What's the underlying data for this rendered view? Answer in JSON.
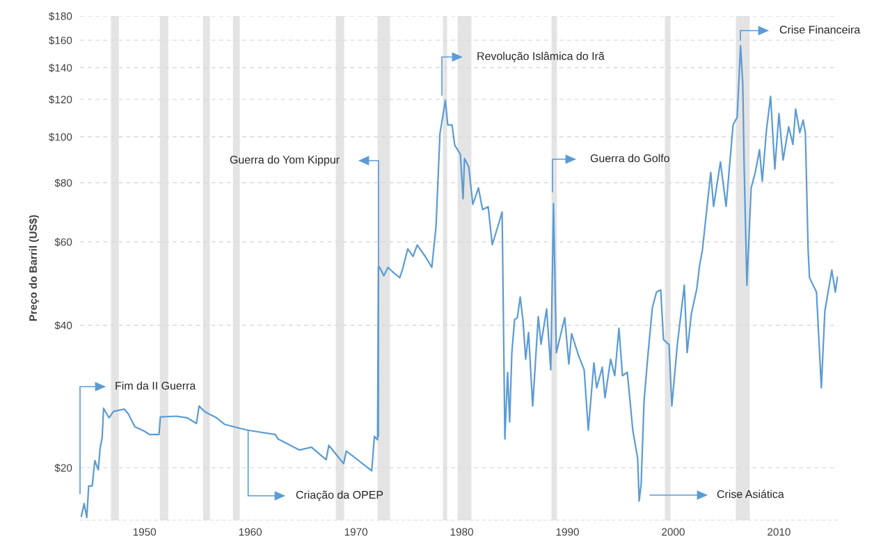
{
  "chart_data": {
    "type": "line",
    "ylabel": "Preço do Barril (US$)",
    "log": "y",
    "grid": "y",
    "line_style": "solid",
    "marker": "none",
    "xlim": [
      1943.9,
      2015.6
    ],
    "xticks": [
      1950,
      1960,
      1970,
      1980,
      1990,
      2000,
      2010
    ],
    "ylim": [
      15.5,
      180
    ],
    "yticks": [
      {
        "value": 20,
        "label": "$20"
      },
      {
        "value": 40,
        "label": "$40"
      },
      {
        "value": 60,
        "label": "$60"
      },
      {
        "value": 80,
        "label": "$80"
      },
      {
        "value": 100,
        "label": "$100"
      },
      {
        "value": 120,
        "label": "$120"
      },
      {
        "value": 140,
        "label": "$140"
      },
      {
        "value": 160,
        "label": "$160"
      },
      {
        "value": 180,
        "label": "$180"
      }
    ],
    "series": [
      {
        "color": "#5b9bd5",
        "x": [
          1944.03,
          1944.29,
          1944.54,
          1944.72,
          1945.05,
          1945.3,
          1945.63,
          1945.8,
          1945.99,
          1946.13,
          1946.64,
          1947.07,
          1948.08,
          1948.46,
          1949.09,
          1949.98,
          1950.49,
          1951.37,
          1951.5,
          1953.01,
          1954.03,
          1954.91,
          1955.16,
          1955.67,
          1956.05,
          1956.81,
          1957.57,
          1959.08,
          1959.8,
          1962.37,
          1962.63,
          1964.66,
          1965.79,
          1967.18,
          1967.43,
          1968.83,
          1969.08,
          1971.49,
          1971.74,
          1972.04,
          1972.12,
          1972.24,
          1972.63,
          1973.03,
          1973.49,
          1974.14,
          1974.41,
          1974.9,
          1975.39,
          1975.79,
          1976.55,
          1977.17,
          1977.57,
          1977.94,
          1978.45,
          1978.68,
          1979.08,
          1979.34,
          1979.87,
          1980.13,
          1980.26,
          1980.66,
          1981.05,
          1981.58,
          1981.97,
          1982.5,
          1982.89,
          1983.42,
          1983.82,
          1984.08,
          1984.34,
          1984.53,
          1984.74,
          1985.0,
          1985.26,
          1985.53,
          1985.79,
          1986.05,
          1986.32,
          1986.71,
          1987.24,
          1987.5,
          1988.03,
          1988.42,
          1988.68,
          1988.95,
          1989.74,
          1990.13,
          1990.39,
          1991.05,
          1991.58,
          1991.97,
          1992.5,
          1992.76,
          1993.29,
          1993.55,
          1994.08,
          1994.47,
          1994.87,
          1995.2,
          1995.66,
          1996.18,
          1996.64,
          1996.78,
          1996.97,
          1997.24,
          1997.63,
          1998.03,
          1998.42,
          1998.82,
          1999.08,
          1999.61,
          1999.87,
          2000.39,
          2001.05,
          2001.32,
          2001.71,
          2002.24,
          2002.5,
          2002.76,
          2003.55,
          2003.82,
          2004.47,
          2005.0,
          2005.66,
          2006.05,
          2006.37,
          2006.58,
          2006.71,
          2006.97,
          2007.37,
          2007.76,
          2008.16,
          2008.42,
          2008.82,
          2009.21,
          2009.61,
          2010.0,
          2010.39,
          2010.92,
          2011.32,
          2011.58,
          2011.97,
          2012.29,
          2012.5,
          2012.76,
          2012.89,
          2013.55,
          2014.01,
          2014.34,
          2015.0,
          2015.33,
          2015.53
        ],
        "values": [
          15.8,
          16.8,
          15.7,
          18.3,
          18.3,
          20.7,
          19.8,
          22.0,
          23.1,
          26.7,
          25.5,
          26.3,
          26.6,
          26.0,
          24.4,
          23.9,
          23.5,
          23.5,
          25.6,
          25.7,
          25.5,
          24.8,
          27.0,
          26.3,
          26.0,
          25.5,
          24.7,
          24.2,
          24.0,
          23.5,
          23.0,
          21.8,
          22.1,
          20.8,
          22.3,
          20.4,
          21.7,
          19.7,
          23.3,
          22.9,
          53.2,
          53.0,
          50.9,
          53.0,
          51.8,
          50.4,
          52.6,
          58.0,
          55.9,
          59.1,
          55.9,
          53.0,
          64.7,
          101.6,
          119.4,
          106,
          106,
          96,
          91.9,
          74,
          90,
          86.5,
          72,
          78,
          70.2,
          71.2,
          59.2,
          64.7,
          69.4,
          23.0,
          31.8,
          25.0,
          35.0,
          41.1,
          41.5,
          45.9,
          41.0,
          33.9,
          38.6,
          27.0,
          41.7,
          36.5,
          43.3,
          32.2,
          72.3,
          35.0,
          41.5,
          33.1,
          38.4,
          34.5,
          32.2,
          24.0,
          33.3,
          29.5,
          32.6,
          28.1,
          33.9,
          31.3,
          39.4,
          31.3,
          31.8,
          24.0,
          20.9,
          17.0,
          18.5,
          27.6,
          35.0,
          43.6,
          47.0,
          47.5,
          37.3,
          36.4,
          27.0,
          36.4,
          48.6,
          35.0,
          42.2,
          47.9,
          53.6,
          57.6,
          84.1,
          71.3,
          88.5,
          71.3,
          106,
          110,
          155.8,
          129,
          86.5,
          48.6,
          78,
          84.1,
          93.9,
          80.6,
          103.3,
          121.7,
          85.5,
          112,
          89.3,
          105,
          96.4,
          114.5,
          102,
          108.5,
          101.9,
          57.6,
          50.4,
          47.0,
          29.5,
          42.8,
          52.3,
          47.0,
          50.5
        ]
      }
    ],
    "bands": [
      {
        "axis": "x",
        "from": 1946.82,
        "to": 1947.57,
        "color": "#e4e4e4"
      },
      {
        "axis": "x",
        "from": 1951.45,
        "to": 1952.24,
        "color": "#e4e4e4"
      },
      {
        "axis": "x",
        "from": 1955.53,
        "to": 1956.18,
        "color": "#e4e4e4"
      },
      {
        "axis": "x",
        "from": 1958.36,
        "to": 1959.01,
        "color": "#e4e4e4"
      },
      {
        "axis": "x",
        "from": 1968.09,
        "to": 1968.88,
        "color": "#e4e4e4"
      },
      {
        "axis": "x",
        "from": 1972.04,
        "to": 1973.22,
        "color": "#e4e4e4"
      },
      {
        "axis": "x",
        "from": 1978.22,
        "to": 1978.62,
        "color": "#e4e4e4"
      },
      {
        "axis": "x",
        "from": 1979.61,
        "to": 1980.92,
        "color": "#e4e4e4"
      },
      {
        "axis": "x",
        "from": 1988.49,
        "to": 1989.01,
        "color": "#e4e4e4"
      },
      {
        "axis": "x",
        "from": 1999.21,
        "to": 1999.74,
        "color": "#e4e4e4"
      },
      {
        "axis": "x",
        "from": 2005.92,
        "to": 2007.24,
        "color": "#e4e4e4"
      }
    ],
    "annotations": [
      "Fim da II Guerra",
      {
        "text": "Criação da OPEP",
        "x": 1959.8,
        "y": 24.0
      },
      "Guerra do Yom Kippur",
      "Revolução Islâmica do Irã",
      "Guerra do Golfo",
      "Crise Financeira",
      "Crise Asiática"
    ]
  }
}
